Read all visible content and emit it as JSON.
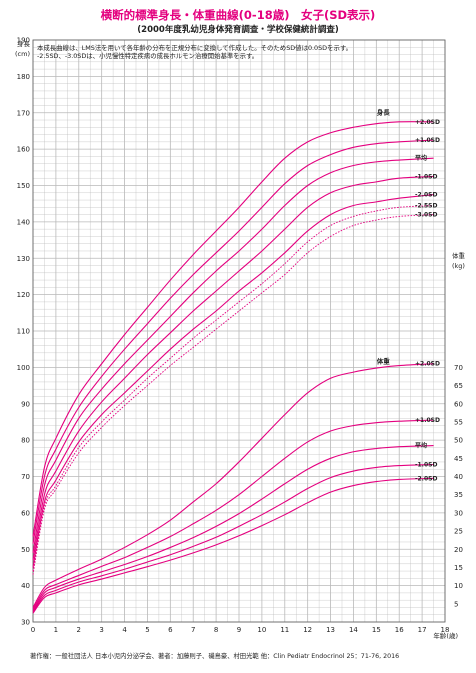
{
  "title": "横断的標準身長・体重曲線(0-18歳)　女子(SD表示)",
  "subtitle": "(2000年度乳幼児身体発育調査・学校保健統計調査)",
  "notes": [
    "本成長曲線は、LMS法を用いて各年齢の分布を正規分布に変換して作成した。そのためSD値は0.0SDを示す。",
    "-2.5SD、-3.0SDは、小児慢性特定疾病の成長ホルモン治療開始基準を示す。"
  ],
  "footer": "著作権：一般社団法人 日本小児内分泌学会、著者：加藤則子、磯島豪、村田光範 他：Clin Pediatr Endocrinol 25：71-76, 2016",
  "colors": {
    "curve": "#e4007f",
    "grid": "#b9b9b9",
    "text": "#222222"
  },
  "chart_data": {
    "type": "line",
    "xlabel": "年齢(歳)",
    "ylabel_left": "身長",
    "yunit_left": "(cm)",
    "ylabel_right": "体重",
    "yunit_right": "(kg)",
    "xlim": [
      0,
      18
    ],
    "ylim_left": [
      30,
      190
    ],
    "ylim_right": [
      0,
      70
    ],
    "x_ticks": [
      "0",
      "1",
      "2",
      "3",
      "4",
      "5",
      "6",
      "7",
      "8",
      "9",
      "10",
      "11",
      "12",
      "13",
      "14",
      "15",
      "16",
      "17",
      "18"
    ],
    "y_ticks_left": [
      "30",
      "40",
      "50",
      "60",
      "70",
      "80",
      "90",
      "100",
      "110",
      "120",
      "130",
      "140",
      "150",
      "160",
      "170",
      "180",
      "190"
    ],
    "y_ticks_right": [
      "5",
      "10",
      "15",
      "20",
      "25",
      "30",
      "35",
      "40",
      "45",
      "50",
      "55",
      "60",
      "65",
      "70"
    ],
    "grid": true,
    "height_group_label": "身長",
    "weight_group_label": "体重",
    "x": [
      0,
      0.5,
      1,
      2,
      3,
      4,
      5,
      6,
      7,
      8,
      9,
      10,
      11,
      12,
      13,
      14,
      15,
      16,
      17.5
    ],
    "height_series": [
      {
        "name": "+2.0SD",
        "dashed": false,
        "values": [
          53.5,
          72.5,
          80.5,
          92.5,
          101,
          109,
          116.5,
          124,
          131,
          137.5,
          144,
          151,
          157.5,
          162,
          164.5,
          166,
          167,
          167.5,
          167.5
        ]
      },
      {
        "name": "+1.0SD",
        "dashed": false,
        "values": [
          51.5,
          70,
          77.5,
          89,
          97.5,
          105,
          112,
          119,
          125.5,
          131.5,
          137.5,
          144,
          150.5,
          155.5,
          158.5,
          160.5,
          161.5,
          162,
          162.5
        ]
      },
      {
        "name": "平均",
        "dashed": false,
        "values": [
          49,
          67.5,
          74.5,
          86,
          94,
          101,
          107.5,
          114,
          120.5,
          126.5,
          132,
          138,
          144.5,
          150,
          153.5,
          155.5,
          156.5,
          157,
          157.5
        ]
      },
      {
        "name": "-1.0SD",
        "dashed": false,
        "values": [
          47,
          65,
          71.5,
          82.5,
          90.5,
          97,
          103.5,
          109.5,
          115.5,
          121,
          126.5,
          132,
          138,
          144,
          148,
          150,
          151,
          152,
          152.5
        ]
      },
      {
        "name": "-2.0SD",
        "dashed": false,
        "values": [
          45,
          63,
          69,
          79.5,
          87,
          93,
          99,
          105,
          110.5,
          115.5,
          121,
          126,
          131.5,
          137.5,
          142,
          144.5,
          145.5,
          146.5,
          147.5
        ]
      },
      {
        "name": "-2.5SD",
        "dashed": true,
        "values": [
          44,
          62,
          67.5,
          78,
          85,
          91,
          97,
          102.5,
          108,
          113,
          118,
          123,
          128.5,
          134.5,
          139,
          141.5,
          143,
          144,
          144.5
        ]
      },
      {
        "name": "-3.0SD",
        "dashed": true,
        "values": [
          43,
          61,
          66.5,
          76.5,
          83.5,
          89.5,
          95,
          100.5,
          105.5,
          110.5,
          115.5,
          120.5,
          125.5,
          131.5,
          136,
          139,
          140.5,
          141.5,
          142
        ]
      }
    ],
    "weight_series": [
      {
        "name": "+2.0SD",
        "values": [
          4,
          9.5,
          11.5,
          14.5,
          17.3,
          20.5,
          24,
          28,
          33,
          38,
          44,
          50.5,
          57,
          63,
          67,
          68.7,
          69.8,
          70.5,
          71
        ]
      },
      {
        "name": "+1.0SD",
        "values": [
          3.5,
          8.7,
          10.3,
          12.8,
          15.3,
          17.7,
          20.5,
          23.5,
          27,
          30.7,
          35,
          40,
          45,
          49.5,
          52.5,
          54,
          54.8,
          55.2,
          55.5
        ]
      },
      {
        "name": "平均",
        "values": [
          3,
          8,
          9.5,
          11.8,
          13.8,
          15.8,
          18,
          20.5,
          23.2,
          26.3,
          29.8,
          33.8,
          38,
          42,
          45,
          46.8,
          47.7,
          48.2,
          48.5
        ]
      },
      {
        "name": "-1.0SD",
        "values": [
          2.7,
          7.3,
          8.7,
          11,
          12.7,
          14.5,
          16.5,
          18.5,
          20.8,
          23.3,
          26.3,
          29.5,
          33,
          36.7,
          39.7,
          41.5,
          42.5,
          43,
          43.3
        ]
      },
      {
        "name": "-2.0SD",
        "values": [
          2.4,
          6.7,
          8,
          10.2,
          11.8,
          13.5,
          15.2,
          17,
          19,
          21.2,
          23.7,
          26.5,
          29.5,
          32.8,
          35.7,
          37.5,
          38.6,
          39.2,
          39.5
        ]
      }
    ]
  }
}
